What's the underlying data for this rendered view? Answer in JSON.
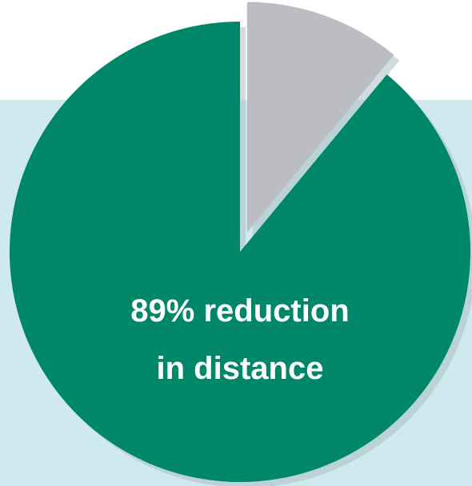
{
  "chart_data": {
    "type": "pie",
    "slices": [
      {
        "label": "89% reduction in distance",
        "value": 89,
        "color": "#00876a",
        "exploded": false
      },
      {
        "label": "",
        "value": 11,
        "color": "#bcbdc2",
        "exploded": true
      }
    ],
    "annotation": {
      "line1": "89% reduction",
      "line2": "in distance"
    },
    "background_band_color": "#cfeaee",
    "shadow_color": "#a9bfc3",
    "title": "",
    "legend": "none"
  }
}
